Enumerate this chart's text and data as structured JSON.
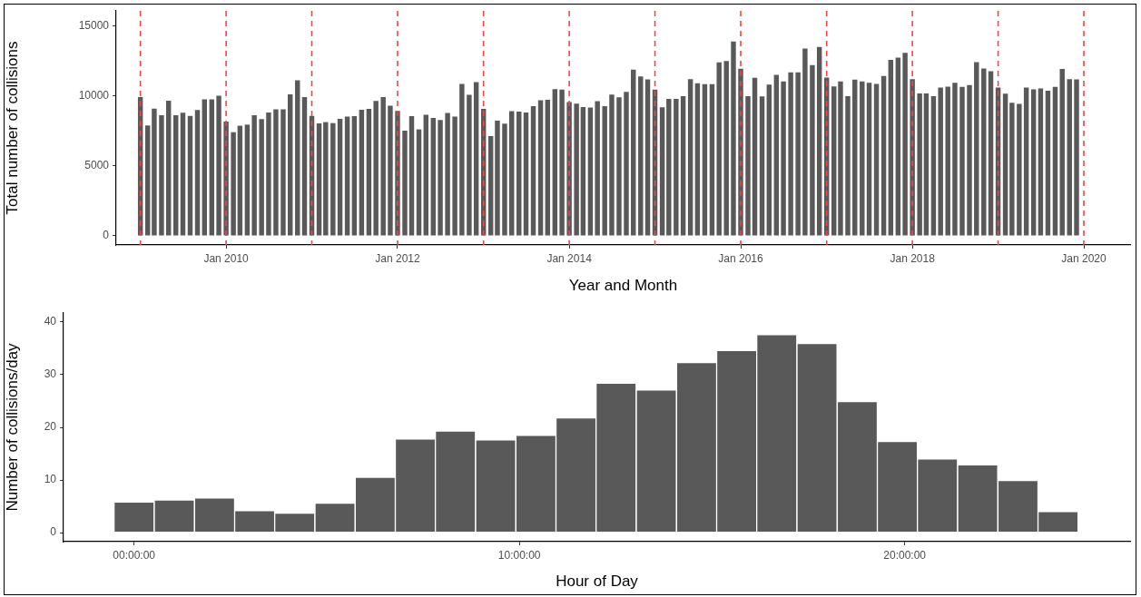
{
  "chart_data": [
    {
      "type": "bar",
      "xlabel": "Year and Month",
      "ylabel": "Total number of collisions",
      "color": "#595959",
      "x": [
        "2009-01",
        "2009-02",
        "2009-03",
        "2009-04",
        "2009-05",
        "2009-06",
        "2009-07",
        "2009-08",
        "2009-09",
        "2009-10",
        "2009-11",
        "2009-12",
        "2010-01",
        "2010-02",
        "2010-03",
        "2010-04",
        "2010-05",
        "2010-06",
        "2010-07",
        "2010-08",
        "2010-09",
        "2010-10",
        "2010-11",
        "2010-12",
        "2011-01",
        "2011-02",
        "2011-03",
        "2011-04",
        "2011-05",
        "2011-06",
        "2011-07",
        "2011-08",
        "2011-09",
        "2011-10",
        "2011-11",
        "2011-12",
        "2012-01",
        "2012-02",
        "2012-03",
        "2012-04",
        "2012-05",
        "2012-06",
        "2012-07",
        "2012-08",
        "2012-09",
        "2012-10",
        "2012-11",
        "2012-12",
        "2013-01",
        "2013-02",
        "2013-03",
        "2013-04",
        "2013-05",
        "2013-06",
        "2013-07",
        "2013-08",
        "2013-09",
        "2013-10",
        "2013-11",
        "2013-12",
        "2014-01",
        "2014-02",
        "2014-03",
        "2014-04",
        "2014-05",
        "2014-06",
        "2014-07",
        "2014-08",
        "2014-09",
        "2014-10",
        "2014-11",
        "2014-12",
        "2015-01",
        "2015-02",
        "2015-03",
        "2015-04",
        "2015-05",
        "2015-06",
        "2015-07",
        "2015-08",
        "2015-09",
        "2015-10",
        "2015-11",
        "2015-12",
        "2016-01",
        "2016-02",
        "2016-03",
        "2016-04",
        "2016-05",
        "2016-06",
        "2016-07",
        "2016-08",
        "2016-09",
        "2016-10",
        "2016-11",
        "2016-12",
        "2017-01",
        "2017-02",
        "2017-03",
        "2017-04",
        "2017-05",
        "2017-06",
        "2017-07",
        "2017-08",
        "2017-09",
        "2017-10",
        "2017-11",
        "2017-12",
        "2018-01",
        "2018-02",
        "2018-03",
        "2018-04",
        "2018-05",
        "2018-06",
        "2018-07",
        "2018-08",
        "2018-09",
        "2018-10",
        "2018-11",
        "2018-12",
        "2019-01",
        "2019-02",
        "2019-03",
        "2019-04",
        "2019-05",
        "2019-06",
        "2019-07",
        "2019-08",
        "2019-09",
        "2019-10",
        "2019-11",
        "2019-12"
      ],
      "values": [
        9940,
        7900,
        9110,
        8640,
        9680,
        8640,
        8810,
        8590,
        9010,
        9770,
        9770,
        10030,
        8180,
        7420,
        7880,
        7960,
        8640,
        8360,
        8830,
        9050,
        9050,
        10130,
        11130,
        9940,
        8590,
        8050,
        8140,
        8070,
        8380,
        8530,
        8570,
        9030,
        9090,
        9660,
        9940,
        9310,
        8940,
        7530,
        8570,
        7620,
        8660,
        8440,
        8290,
        8790,
        8530,
        10870,
        10090,
        11000,
        9090,
        7140,
        8250,
        8030,
        8920,
        8900,
        8830,
        9290,
        9700,
        9740,
        10500,
        10460,
        9570,
        9460,
        9220,
        9180,
        9640,
        9290,
        10110,
        9920,
        10310,
        11890,
        11410,
        11200,
        10460,
        9200,
        9810,
        9810,
        10000,
        11220,
        10920,
        10850,
        10850,
        12410,
        12520,
        13910,
        11960,
        10000,
        11310,
        9980,
        10830,
        11520,
        11050,
        11700,
        11700,
        13410,
        12220,
        13520,
        11330,
        10700,
        11050,
        10000,
        11180,
        11050,
        10960,
        10870,
        11440,
        12590,
        12760,
        13090,
        11220,
        10200,
        10200,
        10000,
        10610,
        10680,
        10960,
        10660,
        10790,
        12430,
        11980,
        11780,
        10610,
        10180,
        9530,
        9440,
        10610,
        10480,
        10550,
        10390,
        10660,
        11940,
        11220,
        11200
      ],
      "xlim": [
        "2008-09-20",
        "2020-07-16"
      ],
      "xticks": [
        {
          "value": "2010-01",
          "label": "Jan 2010"
        },
        {
          "value": "2012-01",
          "label": "Jan 2012"
        },
        {
          "value": "2014-01",
          "label": "Jan 2014"
        },
        {
          "value": "2016-01",
          "label": "Jan 2016"
        },
        {
          "value": "2018-01",
          "label": "Jan 2018"
        },
        {
          "value": "2020-01",
          "label": "Jan 2020"
        }
      ],
      "ylim": [
        -650,
        16100
      ],
      "yticks": [
        0,
        5000,
        10000,
        15000
      ],
      "grid": false,
      "legend": false,
      "ref_lines": [
        {
          "axis": "x",
          "value": "2009-01",
          "color": "#ff4040",
          "line_style": "dashed"
        },
        {
          "axis": "x",
          "value": "2010-01",
          "color": "#ff4040",
          "line_style": "dashed"
        },
        {
          "axis": "x",
          "value": "2011-01",
          "color": "#ff4040",
          "line_style": "dashed"
        },
        {
          "axis": "x",
          "value": "2012-01",
          "color": "#ff4040",
          "line_style": "dashed"
        },
        {
          "axis": "x",
          "value": "2013-01",
          "color": "#ff4040",
          "line_style": "dashed"
        },
        {
          "axis": "x",
          "value": "2014-01",
          "color": "#ff4040",
          "line_style": "dashed"
        },
        {
          "axis": "x",
          "value": "2015-01",
          "color": "#ff4040",
          "line_style": "dashed"
        },
        {
          "axis": "x",
          "value": "2016-01",
          "color": "#ff4040",
          "line_style": "dashed"
        },
        {
          "axis": "x",
          "value": "2017-01",
          "color": "#ff4040",
          "line_style": "dashed"
        },
        {
          "axis": "x",
          "value": "2018-01",
          "color": "#ff4040",
          "line_style": "dashed"
        },
        {
          "axis": "x",
          "value": "2019-01",
          "color": "#ff4040",
          "line_style": "dashed"
        },
        {
          "axis": "x",
          "value": "2020-01",
          "color": "#ff4040",
          "line_style": "dashed"
        }
      ]
    },
    {
      "type": "histogram",
      "xlabel": "Hour of Day",
      "ylabel": "Number of collisions/day",
      "color": "#595959",
      "bins": [
        -0.52,
        0.52,
        1.57,
        2.61,
        3.65,
        4.69,
        5.74,
        6.78,
        7.82,
        8.86,
        9.91,
        10.95,
        11.99,
        13.03,
        14.08,
        15.12,
        16.16,
        17.2,
        18.25,
        19.29,
        20.33,
        21.37,
        22.42,
        23.46,
        24.5
      ],
      "values": [
        5.8,
        6.2,
        6.6,
        4.2,
        3.7,
        5.6,
        10.5,
        17.8,
        19.3,
        17.6,
        18.5,
        21.8,
        28.4,
        27.1,
        32.3,
        34.6,
        37.6,
        35.9,
        24.9,
        17.3,
        14,
        12.9,
        9.9,
        4
      ],
      "xlim": [
        -1.83,
        25.85
      ],
      "xticks": [
        {
          "value": 0,
          "label": "00:00:00"
        },
        {
          "value": 10,
          "label": "10:00:00"
        },
        {
          "value": 20,
          "label": "20:00:00"
        }
      ],
      "ylim": [
        -1.7,
        41.7
      ],
      "yticks": [
        0,
        10,
        20,
        30,
        40
      ],
      "grid": false,
      "legend": false
    }
  ]
}
